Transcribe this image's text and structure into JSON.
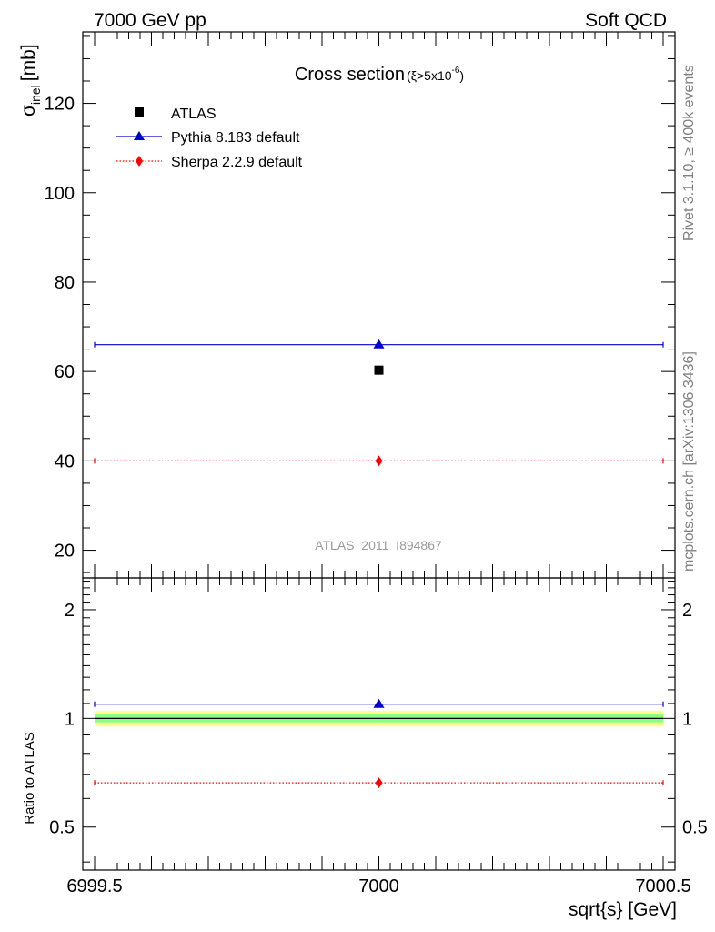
{
  "header": {
    "left": "7000 GeV pp",
    "right": "Soft QCD"
  },
  "side_labels": {
    "rivet": "Rivet 3.1.10, ≥ 400k events",
    "mcplots": "mcplots.cern.ch [arXiv:1306.3436]"
  },
  "colors": {
    "atlas": "#000000",
    "pythia": "#0000cc",
    "sherpa": "#ff0000",
    "band_inner": "#88ff88",
    "band_outer": "#ffff88",
    "watermark": "#999999",
    "side_text": "#808080"
  },
  "chart_data": [
    {
      "id": "main",
      "type": "scatter",
      "title": "Cross section",
      "title_condition": "(ξ>5x10",
      "title_condition_exp": "-6",
      "title_condition_close": ")",
      "ylabel": "σ",
      "ylabel_sub": "inel",
      "ylabel_unit": "[mb]",
      "xlim": [
        6999.5,
        7000.5
      ],
      "ylim": [
        13.8,
        136
      ],
      "yticks": [
        20,
        40,
        60,
        80,
        100,
        120
      ],
      "watermark": "ATLAS_2011_I894867",
      "legend_position": "top-left",
      "series": [
        {
          "name": "ATLAS",
          "marker": "square",
          "x": [
            7000
          ],
          "values": [
            60.3
          ]
        },
        {
          "name": "Pythia 8.183 default",
          "marker": "triangle",
          "line": "solid",
          "x": [
            7000
          ],
          "values": [
            66.0
          ]
        },
        {
          "name": "Sherpa 2.2.9 default",
          "marker": "diamond",
          "line": "dotted",
          "x": [
            7000
          ],
          "values": [
            40.0
          ]
        }
      ]
    },
    {
      "id": "ratio",
      "type": "line",
      "ylabel": "Ratio to ATLAS",
      "xlabel": "sqrt{s} [GeV]",
      "xlim": [
        6999.5,
        7000.5
      ],
      "xticks": [
        "6999.5",
        "7000",
        "7000.5"
      ],
      "yscale": "log",
      "ylim": [
        0.38,
        2.45
      ],
      "yticks": [
        "0.5",
        "1",
        "2"
      ],
      "band": {
        "inner": [
          0.975,
          1.025
        ],
        "outer": [
          0.95,
          1.05
        ]
      },
      "series": [
        {
          "name": "Pythia 8.183 default",
          "x": [
            7000
          ],
          "values": [
            1.095
          ]
        },
        {
          "name": "Sherpa 2.2.9 default",
          "x": [
            7000
          ],
          "values": [
            0.663
          ]
        }
      ]
    }
  ]
}
